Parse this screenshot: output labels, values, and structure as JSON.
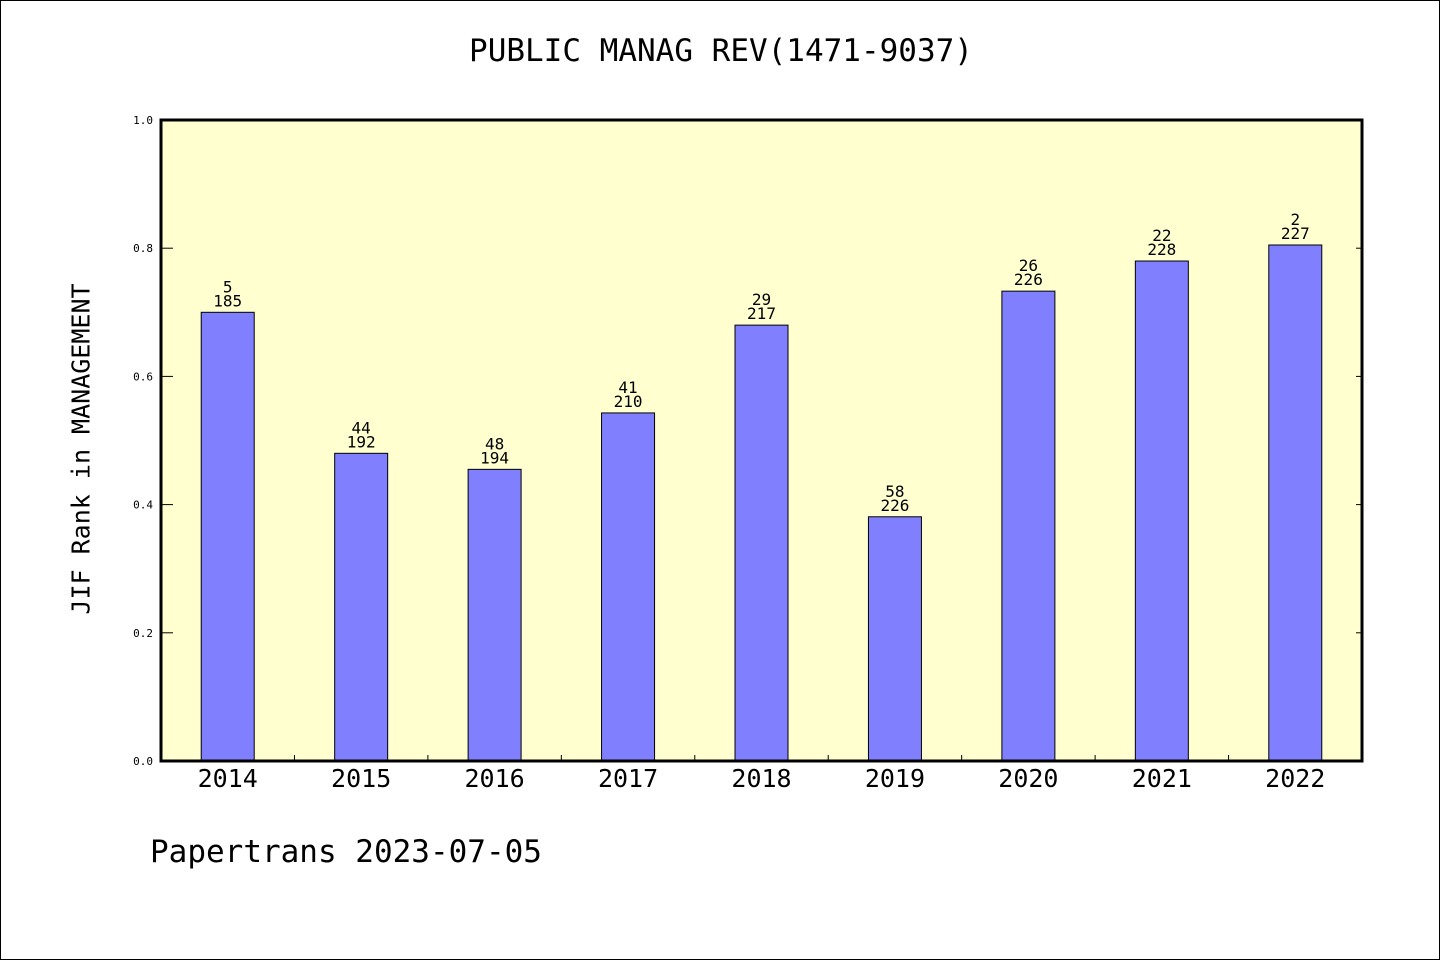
{
  "chart_data": {
    "type": "bar",
    "title": "PUBLIC MANAG REV(1471-9037)",
    "xlabel": "",
    "ylabel": "JIF Rank in MANAGEMENT",
    "ylim": [
      0,
      1.0
    ],
    "yticks": [
      "0.0",
      "0.2",
      "0.4",
      "0.6",
      "0.8",
      "1.0"
    ],
    "grid": false,
    "categories": [
      "2014",
      "2015",
      "2016",
      "2017",
      "2018",
      "2019",
      "2020",
      "2021",
      "2022"
    ],
    "values": [
      0.7,
      0.48,
      0.455,
      0.543,
      0.68,
      0.381,
      0.733,
      0.78,
      0.805
    ],
    "labels": [
      {
        "rank": "5",
        "total": "185"
      },
      {
        "rank": "44",
        "total": "192"
      },
      {
        "rank": "48",
        "total": "194"
      },
      {
        "rank": "41",
        "total": "210"
      },
      {
        "rank": "29",
        "total": "217"
      },
      {
        "rank": "58",
        "total": "226"
      },
      {
        "rank": "26",
        "total": "226"
      },
      {
        "rank": "22",
        "total": "228"
      },
      {
        "rank": "2",
        "total": "227"
      }
    ]
  },
  "colors": {
    "plot_background": "#ffffd0",
    "bar_fill": "#8080ff",
    "bar_stroke": "#000000"
  },
  "footer": "Papertrans 2023-07-05"
}
